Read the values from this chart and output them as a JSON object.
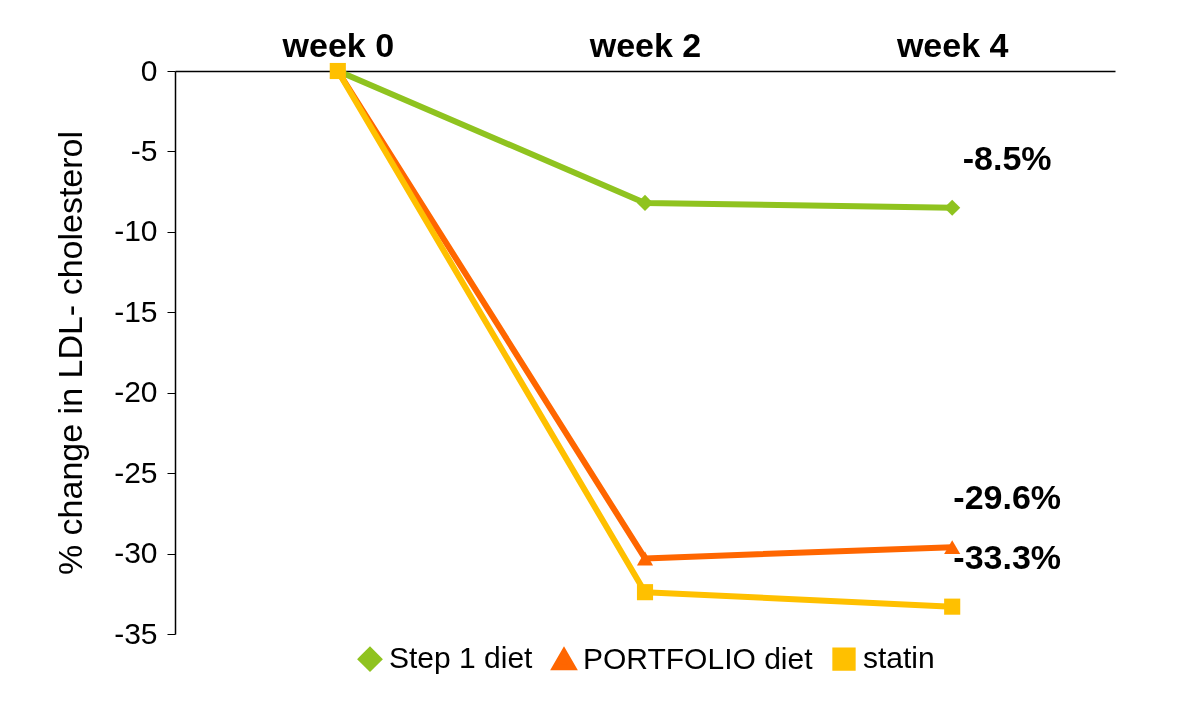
{
  "chart_data": {
    "type": "line",
    "ylabel": "% change  in  LDL- cholesterol",
    "categories": [
      "week 0",
      "week 2",
      "week 4"
    ],
    "series": [
      {
        "name": "Step 1 diet",
        "color": "#8fc31f",
        "marker": "diamond",
        "values": [
          0,
          -8.2,
          -8.5
        ],
        "value_labels": [
          null,
          null,
          "-8.5%"
        ]
      },
      {
        "name": "PORTFOLIO diet",
        "color": "#ff6600",
        "marker": "triangle",
        "values": [
          0,
          -30.3,
          -29.6
        ],
        "value_labels": [
          null,
          null,
          "-29.6%"
        ]
      },
      {
        "name": "statin",
        "color": "#ffc000",
        "marker": "square",
        "values": [
          0,
          -32.4,
          -33.3
        ],
        "value_labels": [
          null,
          null,
          "-33.3%"
        ]
      }
    ],
    "ylim": [
      -35,
      0
    ],
    "yticks": [
      0,
      -5,
      -10,
      -15,
      -20,
      -25,
      -30,
      -35
    ],
    "grid": false,
    "legend": "bottom",
    "line_style": "solid"
  }
}
